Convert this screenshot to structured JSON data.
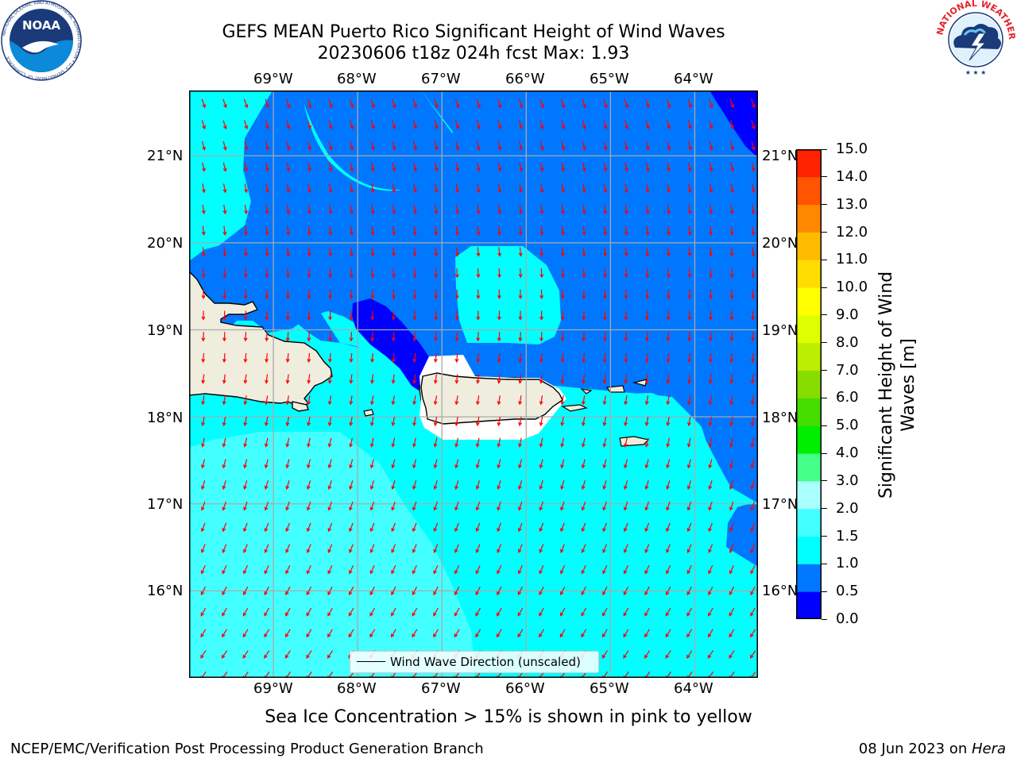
{
  "title": {
    "line1": "GEFS MEAN Puerto Rico Significant Height of Wind Waves",
    "line2": "20230606 t18z 024h fcst   Max: 1.93"
  },
  "logos": {
    "noaa": {
      "text": "NOAA",
      "ring_text": "NATIONAL OCEANIC AND ATMOSPHERIC ADMINISTRATION • U.S. DEPARTMENT OF COMMERCE"
    },
    "nws": {
      "ring_text": "NATIONAL WEATHER SERVICE"
    }
  },
  "map": {
    "lon_labels": [
      "69°W",
      "68°W",
      "67°W",
      "66°W",
      "65°W",
      "64°W"
    ],
    "lat_labels": [
      "21°N",
      "20°N",
      "19°N",
      "18°N",
      "17°N",
      "16°N"
    ],
    "lon_range": [
      -70.0,
      -63.25
    ],
    "lat_range": [
      15.0,
      21.75
    ],
    "colors": {
      "land": "#efedde",
      "arrow": "#ff0000",
      "grid": "#aaaaaa"
    }
  },
  "legend": {
    "label": "Wind Wave Direction (unscaled)"
  },
  "colorbar": {
    "label": "Significant Height of Wind Waves [m]",
    "label_lines": [
      "Significant Height of Wind",
      "Waves [m]"
    ],
    "levels": [
      0.0,
      0.5,
      1.0,
      1.5,
      2.0,
      3.0,
      4.0,
      5.0,
      6.0,
      7.0,
      8.0,
      9.0,
      10.0,
      11.0,
      12.0,
      13.0,
      14.0,
      15.0
    ],
    "tick_labels": [
      "0.0",
      "0.5",
      "1.0",
      "1.5",
      "2.0",
      "3.0",
      "4.0",
      "5.0",
      "6.0",
      "7.0",
      "8.0",
      "9.0",
      "10.0",
      "11.0",
      "12.0",
      "13.0",
      "14.0",
      "15.0"
    ],
    "colors": [
      "#0000ff",
      "#0077ff",
      "#00ffff",
      "#44ffff",
      "#aaffff",
      "#44ff88",
      "#00ee00",
      "#44dd00",
      "#88dd00",
      "#bbee00",
      "#ddff00",
      "#ffff00",
      "#ffdd00",
      "#ffbb00",
      "#ff8800",
      "#ff5500",
      "#ff2200"
    ]
  },
  "note": "Sea Ice Concentration > 15% is shown in pink to yellow",
  "footer": {
    "left": "NCEP/EMC/Verification Post Processing Product Generation Branch",
    "date": "08 Jun 2023 on ",
    "host": "Hera"
  }
}
